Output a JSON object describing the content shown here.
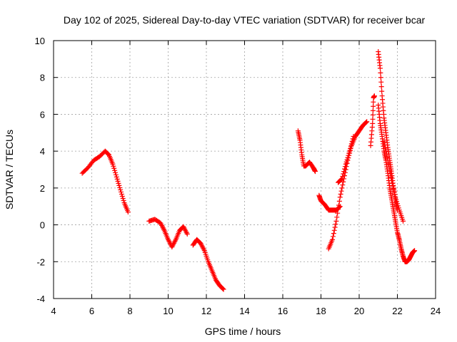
{
  "chart_data": {
    "type": "scatter",
    "title": "Day 102 of 2025, Sidereal Day-to-day VTEC variation (SDTVAR) for receiver bcar",
    "xlabel": "GPS time / hours",
    "ylabel": "SDTVAR / TECUs",
    "xlim": [
      4,
      24
    ],
    "ylim": [
      -4,
      10
    ],
    "x_ticks": [
      4,
      6,
      8,
      10,
      12,
      14,
      16,
      18,
      20,
      22,
      24
    ],
    "y_ticks": [
      -4,
      -2,
      0,
      2,
      4,
      6,
      8,
      10
    ],
    "grid": true,
    "marker": "+",
    "marker_color": "#ff0000",
    "series": [
      {
        "name": "SDTVAR",
        "segments": [
          {
            "x": [
              5.5,
              5.8,
              6.1,
              6.4,
              6.7,
              6.9,
              7.1,
              7.3,
              7.5,
              7.7,
              7.9
            ],
            "y": [
              2.8,
              3.1,
              3.5,
              3.7,
              4.0,
              3.8,
              3.3,
              2.6,
              1.9,
              1.2,
              0.7
            ]
          },
          {
            "x": [
              9.0,
              9.3,
              9.6,
              9.8,
              10.0,
              10.2,
              10.4,
              10.6,
              10.8,
              11.0
            ],
            "y": [
              0.2,
              0.3,
              0.1,
              -0.3,
              -0.8,
              -1.2,
              -0.8,
              -0.3,
              -0.1,
              -0.5
            ]
          },
          {
            "x": [
              11.3,
              11.5,
              11.7,
              11.9,
              12.1,
              12.3,
              12.5,
              12.7,
              12.9
            ],
            "y": [
              -1.1,
              -0.8,
              -1.0,
              -1.4,
              -2.0,
              -2.5,
              -3.0,
              -3.3,
              -3.5
            ]
          },
          {
            "x": [
              16.8,
              16.9,
              17.0,
              17.1,
              17.2,
              17.4,
              17.6,
              17.7
            ],
            "y": [
              5.1,
              4.6,
              3.8,
              3.2,
              3.2,
              3.4,
              3.1,
              2.9
            ]
          },
          {
            "x": [
              17.9,
              18.0,
              18.2,
              18.4,
              18.6,
              18.8,
              19.0
            ],
            "y": [
              1.6,
              1.3,
              1.1,
              0.8,
              0.8,
              0.8,
              1.0
            ]
          },
          {
            "x": [
              18.4,
              18.6,
              18.8,
              19.0,
              19.2,
              19.4,
              19.6,
              19.8,
              20.0,
              20.2,
              20.4
            ],
            "y": [
              -1.3,
              -0.8,
              0.2,
              1.5,
              2.5,
              3.5,
              4.3,
              4.8,
              5.1,
              5.4,
              5.6
            ]
          },
          {
            "x": [
              18.9,
              19.1,
              19.3,
              19.5,
              19.7
            ],
            "y": [
              2.3,
              2.5,
              3.3,
              4.0,
              4.8
            ]
          },
          {
            "x": [
              20.6,
              20.7,
              20.75,
              20.8
            ],
            "y": [
              4.3,
              5.5,
              6.9,
              7.0
            ]
          },
          {
            "x": [
              21.0,
              21.1,
              21.2,
              21.3,
              21.4,
              21.5,
              21.6,
              21.7,
              21.8,
              21.9,
              22.0
            ],
            "y": [
              9.4,
              8.5,
              7.0,
              5.8,
              5.0,
              4.2,
              3.5,
              2.8,
              2.0,
              1.3,
              0.8
            ]
          },
          {
            "x": [
              21.0,
              21.1,
              21.2,
              21.3,
              21.4,
              21.5,
              21.6,
              21.7,
              21.8,
              21.9,
              22.0,
              22.1,
              22.2,
              22.3,
              22.4,
              22.5,
              22.6,
              22.7,
              22.8,
              22.9
            ],
            "y": [
              6.5,
              5.5,
              4.8,
              4.0,
              3.5,
              2.8,
              2.0,
              1.4,
              0.8,
              0.2,
              -0.4,
              -0.8,
              -1.3,
              -1.7,
              -2.0,
              -2.0,
              -1.9,
              -1.7,
              -1.5,
              -1.4
            ]
          },
          {
            "x": [
              21.3,
              21.5,
              21.7,
              21.9,
              22.1,
              22.3
            ],
            "y": [
              4.5,
              3.5,
              2.4,
              1.5,
              0.8,
              0.2
            ]
          }
        ]
      }
    ]
  }
}
